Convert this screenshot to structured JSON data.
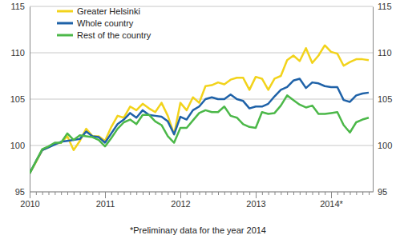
{
  "chart_data": {
    "type": "line",
    "categories": [
      "2010",
      null,
      null,
      null,
      null,
      null,
      null,
      null,
      null,
      null,
      null,
      null,
      "2011",
      null,
      null,
      null,
      null,
      null,
      null,
      null,
      null,
      null,
      null,
      null,
      "2012",
      null,
      null,
      null,
      null,
      null,
      null,
      null,
      null,
      null,
      null,
      null,
      "2013",
      null,
      null,
      null,
      null,
      null,
      null,
      null,
      null,
      null,
      null,
      null,
      "2014*",
      null,
      null,
      null,
      null,
      null,
      null
    ],
    "series": [
      {
        "name": "Greater Helsinki",
        "color": "#f2d31b",
        "values": [
          97,
          98.2,
          99.5,
          99.8,
          100.2,
          100.3,
          101,
          99.5,
          100.5,
          101.8,
          101,
          101,
          100.5,
          102,
          103.2,
          103,
          104.2,
          103.8,
          104.5,
          104,
          103.6,
          104.6,
          103.2,
          101.2,
          104.6,
          103.8,
          105.2,
          104.6,
          106.4,
          106.5,
          106.8,
          106.6,
          107.1,
          107.3,
          107.3,
          106,
          107.4,
          107.2,
          106,
          107.2,
          107.5,
          109.2,
          109.7,
          109.1,
          110.5,
          108.9,
          109.7,
          110.8,
          110.1,
          109.9,
          108.6,
          109,
          109.3,
          109.3,
          109.2
        ]
      },
      {
        "name": "Whole country",
        "color": "#1f62a8",
        "values": [
          97,
          98.3,
          99.5,
          99.8,
          100.1,
          100.4,
          100.5,
          100.6,
          100.7,
          101.5,
          101,
          100.9,
          100.3,
          101.3,
          102.3,
          102.8,
          103.5,
          103,
          103.8,
          103.3,
          103.2,
          103.1,
          102.6,
          101.2,
          103.1,
          102.8,
          103.8,
          104.2,
          105,
          105.2,
          105,
          105,
          105.5,
          105,
          104.8,
          104,
          104.2,
          104.2,
          104.5,
          105.3,
          106,
          106.3,
          107,
          107.2,
          106.2,
          106.8,
          106.7,
          106.4,
          106.3,
          106.3,
          104.9,
          104.7,
          105.4,
          105.6,
          105.7
        ]
      },
      {
        "name": "Rest of the country",
        "color": "#4cb849",
        "values": [
          97,
          98.3,
          99.6,
          99.9,
          100.3,
          100.3,
          101.3,
          100.6,
          101.1,
          101,
          100.9,
          100.6,
          99.9,
          100.8,
          101.8,
          102.5,
          102.8,
          102.3,
          103.3,
          103.3,
          102.6,
          102.2,
          101,
          100.3,
          101.9,
          101.9,
          102.7,
          103.5,
          103.8,
          103.6,
          103.6,
          104.2,
          103.2,
          103,
          102.3,
          102,
          101.9,
          103.6,
          103.4,
          103.5,
          104.3,
          105.4,
          104.9,
          104.4,
          104.1,
          104.3,
          103.4,
          103.4,
          103.5,
          103.6,
          102.2,
          101.4,
          102.5,
          102.8,
          103
        ]
      }
    ],
    "ylim": [
      95,
      115
    ],
    "yticks": [
      95,
      100,
      105,
      110,
      115
    ],
    "y2lim": [
      95,
      115
    ],
    "y2ticks": [
      95,
      100,
      105,
      110,
      115
    ],
    "grid": true,
    "legend": "top-left",
    "annotations": [
      "*Preliminary data for the year 2014"
    ]
  }
}
